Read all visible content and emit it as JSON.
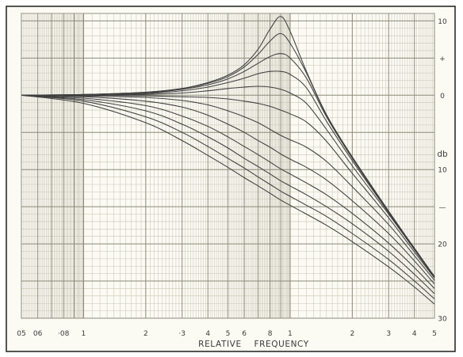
{
  "chart_data": {
    "type": "line",
    "title": "",
    "xlabel": "RELATIVE    FREQUENCY",
    "ylabel": "db",
    "x_scale": "log",
    "xlim": [
      0.05,
      5
    ],
    "ylim": [
      -30,
      11
    ],
    "grid": true,
    "x_ticks": [
      {
        "value": 0.05,
        "label": "05"
      },
      {
        "value": 0.06,
        "label": "06"
      },
      {
        "value": 0.08,
        "label": "·08"
      },
      {
        "value": 0.1,
        "label": "1"
      },
      {
        "value": 0.2,
        "label": "2"
      },
      {
        "value": 0.3,
        "label": "·3"
      },
      {
        "value": 0.4,
        "label": "4"
      },
      {
        "value": 0.5,
        "label": "5"
      },
      {
        "value": 0.6,
        "label": "6"
      },
      {
        "value": 0.8,
        "label": "8"
      },
      {
        "value": 1,
        "label": "1"
      },
      {
        "value": 2,
        "label": "2"
      },
      {
        "value": 3,
        "label": "3"
      },
      {
        "value": 4,
        "label": "4"
      },
      {
        "value": 5,
        "label": "5"
      }
    ],
    "y_ticks": [
      {
        "value": 10,
        "label": "10"
      },
      {
        "value": 5,
        "label": "+"
      },
      {
        "value": 0,
        "label": "0"
      },
      {
        "value": -10,
        "label": "10"
      },
      {
        "value": -15,
        "label": "—"
      },
      {
        "value": -20,
        "label": "20"
      },
      {
        "value": -30,
        "label": "30"
      }
    ],
    "x": [
      0.05,
      0.1,
      0.2,
      0.3,
      0.4,
      0.5,
      0.6,
      0.7,
      0.8,
      0.9,
      1,
      1.2,
      1.5,
      2,
      3,
      4,
      5
    ],
    "series": [
      {
        "values": [
          0.0,
          0.1,
          0.4,
          0.9,
          1.7,
          2.7,
          4.1,
          6.2,
          8.9,
          10.6,
          8.6,
          3.2,
          -2.6,
          -8.3,
          -15.6,
          -20.6,
          -24.4
        ]
      },
      {
        "values": [
          0.0,
          0.1,
          0.4,
          0.9,
          1.6,
          2.5,
          3.8,
          5.5,
          7.3,
          8.3,
          7.0,
          3.0,
          -2.7,
          -8.3,
          -15.6,
          -20.6,
          -24.4
        ]
      },
      {
        "values": [
          0.0,
          0.1,
          0.3,
          0.8,
          1.4,
          2.2,
          3.2,
          4.3,
          5.2,
          5.6,
          5.0,
          2.3,
          -2.9,
          -8.5,
          -15.7,
          -20.6,
          -24.4
        ]
      },
      {
        "values": [
          0.0,
          0.0,
          0.2,
          0.6,
          1.1,
          1.7,
          2.3,
          2.9,
          3.2,
          3.2,
          2.8,
          1.0,
          -3.5,
          -8.8,
          -15.8,
          -20.7,
          -24.4
        ]
      },
      {
        "values": [
          0.0,
          0.0,
          0.1,
          0.3,
          0.6,
          0.9,
          1.1,
          1.2,
          1.1,
          0.8,
          0.3,
          -1.1,
          -4.6,
          -9.5,
          -16.0,
          -20.8,
          -24.5
        ]
      },
      {
        "values": [
          0.0,
          0.0,
          -0.1,
          -0.2,
          -0.3,
          -0.5,
          -0.8,
          -1.1,
          -1.5,
          -2.0,
          -2.5,
          -3.6,
          -6.2,
          -10.5,
          -16.5,
          -21.1,
          -24.6
        ]
      },
      {
        "values": [
          0.0,
          -0.1,
          -0.3,
          -0.7,
          -1.3,
          -2.1,
          -2.9,
          -3.7,
          -4.6,
          -5.4,
          -6.0,
          -7.0,
          -8.9,
          -12.3,
          -17.4,
          -21.6,
          -24.9
        ]
      },
      {
        "values": [
          0.0,
          -0.2,
          -0.8,
          -1.6,
          -2.7,
          -3.9,
          -5.0,
          -6.1,
          -7.0,
          -7.9,
          -8.6,
          -9.7,
          -11.4,
          -14.2,
          -18.6,
          -22.3,
          -25.4
        ]
      },
      {
        "values": [
          0.0,
          -0.4,
          -1.4,
          -2.8,
          -4.2,
          -5.6,
          -6.9,
          -8.0,
          -9.0,
          -9.9,
          -10.6,
          -11.8,
          -13.4,
          -15.9,
          -19.9,
          -23.2,
          -26.0
        ]
      },
      {
        "values": [
          0.0,
          -0.6,
          -2.1,
          -3.9,
          -5.6,
          -7.1,
          -8.5,
          -9.6,
          -10.6,
          -11.5,
          -12.2,
          -13.4,
          -15.0,
          -17.3,
          -21.0,
          -24.1,
          -26.7
        ]
      },
      {
        "values": [
          0.0,
          -0.8,
          -2.9,
          -5.0,
          -6.9,
          -8.5,
          -9.8,
          -11.0,
          -12.0,
          -12.9,
          -13.6,
          -14.8,
          -16.3,
          -18.6,
          -22.1,
          -25.0,
          -27.4
        ]
      },
      {
        "values": [
          0.0,
          -1.1,
          -3.7,
          -6.1,
          -8.1,
          -9.7,
          -11.1,
          -12.2,
          -13.2,
          -14.1,
          -14.8,
          -16.0,
          -17.5,
          -19.7,
          -23.1,
          -25.8,
          -28.1
        ]
      }
    ]
  }
}
